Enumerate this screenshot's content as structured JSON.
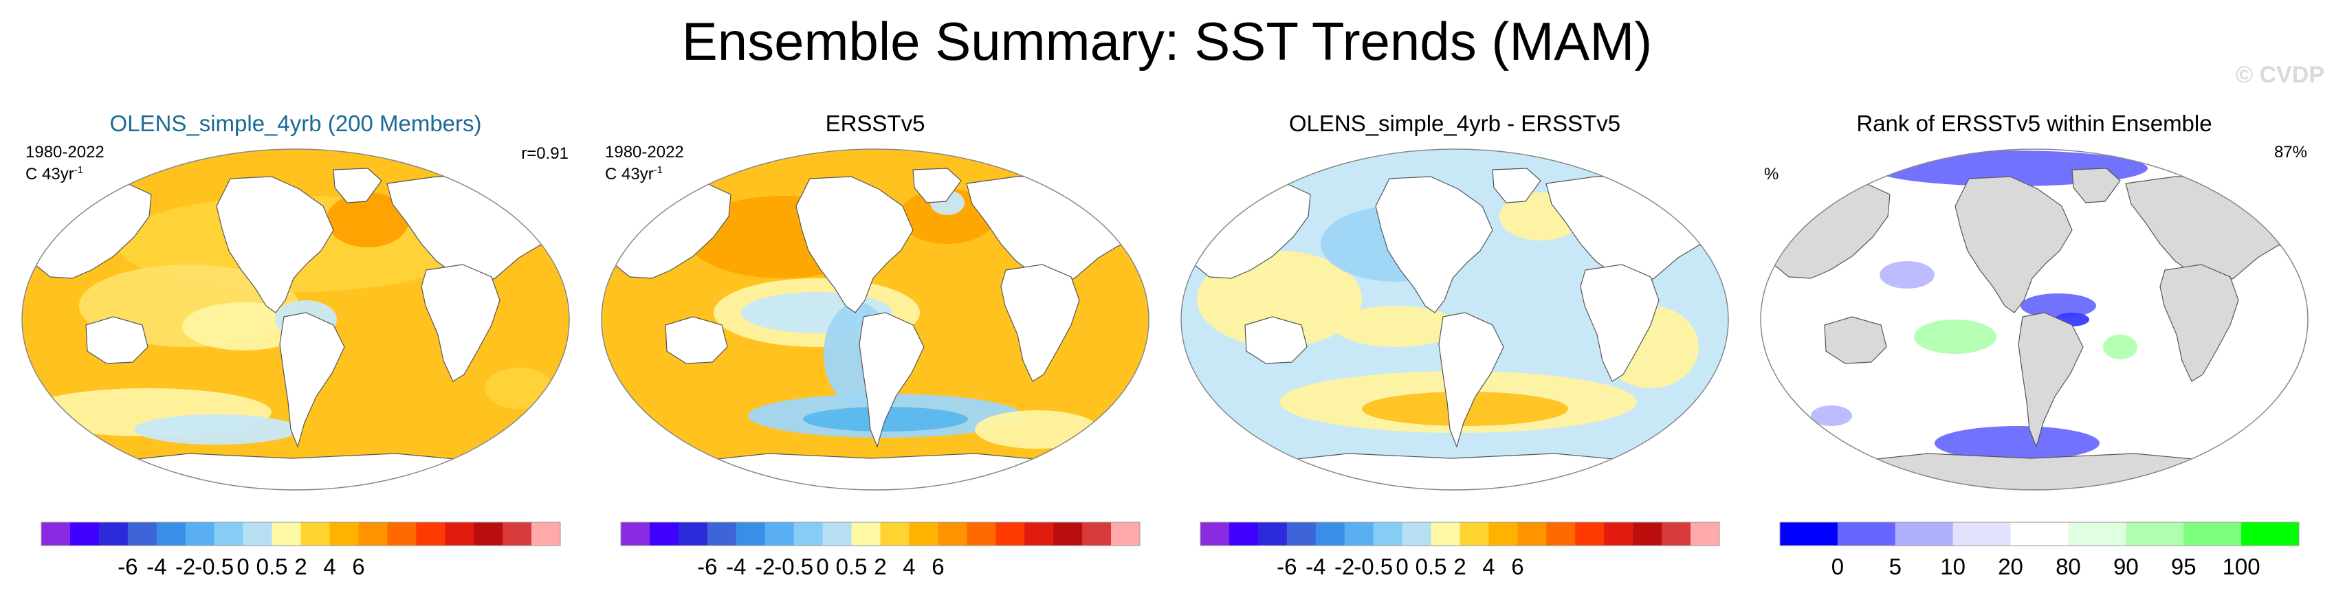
{
  "title": "Ensemble Summary: SST Trends (MAM)",
  "watermark": "© CVDP",
  "chart_data": [
    {
      "type": "heatmap",
      "title": "OLENS_simple_4yrb (200 Members)",
      "title_color": "#1b6a94",
      "period": "1980-2022",
      "units_prefix": "C 43yr",
      "units_sup": "-1",
      "stat": "r=0.91",
      "field": "ensemble-mean SST trend",
      "colorbar": {
        "tick_labels": [
          "-6",
          "-4",
          "-2",
          "-0.5",
          "0",
          "0.5",
          "2",
          "4",
          "6"
        ],
        "colors": [
          "#8a2be2",
          "#3f00ff",
          "#2b2bdc",
          "#3e64d9",
          "#3b8ee8",
          "#5aaef2",
          "#86cdf5",
          "#b7dff3",
          "#fff9a6",
          "#ffd330",
          "#ffb300",
          "#ff9300",
          "#ff6a00",
          "#ff3a00",
          "#e11c0e",
          "#bb0f0f",
          "#d83a3a",
          "#ffaaaa"
        ]
      }
    },
    {
      "type": "heatmap",
      "title": "ERSSTv5",
      "title_color": "#000000",
      "period": "1980-2022",
      "units_prefix": "C 43yr",
      "units_sup": "-1",
      "field": "observed SST trend",
      "colorbar": {
        "tick_labels": [
          "-6",
          "-4",
          "-2",
          "-0.5",
          "0",
          "0.5",
          "2",
          "4",
          "6"
        ],
        "colors": [
          "#8a2be2",
          "#3f00ff",
          "#2b2bdc",
          "#3e64d9",
          "#3b8ee8",
          "#5aaef2",
          "#86cdf5",
          "#b7dff3",
          "#fff9a6",
          "#ffd330",
          "#ffb300",
          "#ff9300",
          "#ff6a00",
          "#ff3a00",
          "#e11c0e",
          "#bb0f0f",
          "#d83a3a",
          "#ffaaaa"
        ]
      }
    },
    {
      "type": "heatmap",
      "title": "OLENS_simple_4yrb - ERSSTv5",
      "title_color": "#000000",
      "field": "difference",
      "colorbar": {
        "tick_labels": [
          "-6",
          "-4",
          "-2",
          "-0.5",
          "0",
          "0.5",
          "2",
          "4",
          "6"
        ],
        "colors": [
          "#8a2be2",
          "#3f00ff",
          "#2b2bdc",
          "#3e64d9",
          "#3b8ee8",
          "#5aaef2",
          "#86cdf5",
          "#b7dff3",
          "#fff9a6",
          "#ffd330",
          "#ffb300",
          "#ff9300",
          "#ff6a00",
          "#ff3a00",
          "#e11c0e",
          "#bb0f0f",
          "#d83a3a",
          "#ffaaaa"
        ]
      }
    },
    {
      "type": "heatmap",
      "title": "Rank of ERSSTv5 within Ensemble",
      "title_color": "#000000",
      "left_label": "%",
      "stat": "87%",
      "field": "rank percentile",
      "colorbar": {
        "tick_labels": [
          "0",
          "5",
          "10",
          "20",
          "80",
          "90",
          "95",
          "100"
        ],
        "colors": [
          "#0000ff",
          "#6666ff",
          "#b0b0ff",
          "#e2e2ff",
          "#ffffff",
          "#e0ffe0",
          "#b0ffb0",
          "#7eff7e",
          "#00ff00"
        ]
      }
    }
  ]
}
